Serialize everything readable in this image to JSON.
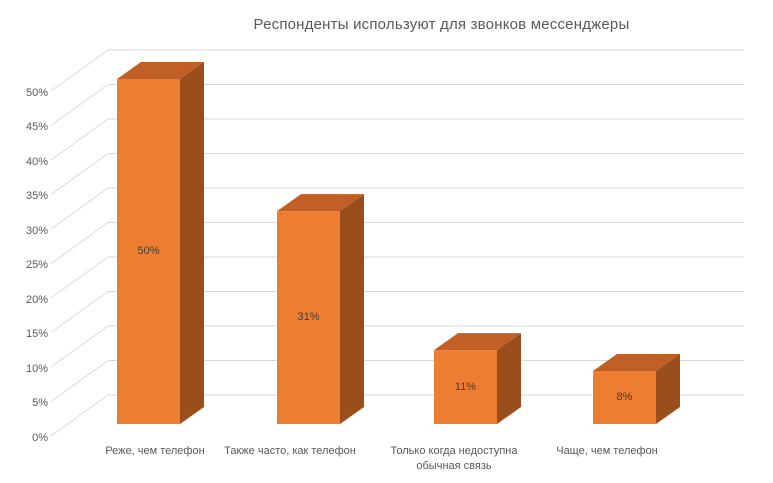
{
  "title": "Респонденты используют для звонков мессенджеры",
  "yaxis": {
    "ticks": [
      "50%",
      "45%",
      "40%",
      "35%",
      "30%",
      "25%",
      "20%",
      "15%",
      "10%",
      "5%",
      "0%"
    ]
  },
  "chart_data": {
    "type": "bar",
    "variant": "3d-column",
    "title": "Респонденты используют для звонков мессенджеры",
    "categories": [
      "Реже, чем телефон",
      "Также часто, как телефон",
      "Только когда недоступна обычная связь",
      "Чаще, чем телефон"
    ],
    "values": [
      50,
      31,
      11,
      8
    ],
    "data_labels": [
      "50%",
      "31%",
      "11%",
      "8%"
    ],
    "xlabel": "",
    "ylabel": "",
    "ylim": [
      0,
      55
    ],
    "ytick_step": 5,
    "grid": true,
    "legend": false,
    "colors": {
      "bar_front": "#ED7D31",
      "bar_top": "#C05F26",
      "bar_side": "#9A4E1C",
      "gridline": "#D9D9D9",
      "axis_text": "#595959",
      "data_label_text": "#404040",
      "background": "#FFFFFF"
    }
  }
}
